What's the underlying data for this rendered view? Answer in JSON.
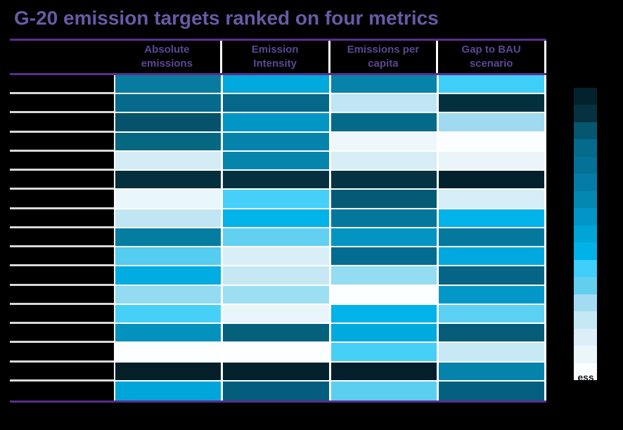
{
  "title": "G-20 emission targets ranked on four metrics",
  "colors": {
    "background": "#000000",
    "title_text": "#695aa6",
    "header_text": "#5b4794",
    "rule_purple": "#5b2d90",
    "label_row_separator": "#d9d9d9",
    "cell_gap": "#ffffff"
  },
  "legend": {
    "bottom_text_fragment": "ess"
  },
  "chart_data": {
    "type": "heatmap",
    "title": "G-20 emission targets ranked on four metrics",
    "columns": [
      "Absolute emissions",
      "Emission Intensity",
      "Emissions per capita",
      "Gap to BAU scenario"
    ],
    "row_count": 17,
    "row_labels_visible": false,
    "legend_position": "right-vertical",
    "legend_colors": [
      "#03222e",
      "#053140",
      "#05566f",
      "#056a8b",
      "#047197",
      "#047ca3",
      "#0487b0",
      "#0295c5",
      "#00a4d7",
      "#00b2e8",
      "#3fcdf9",
      "#62cfee",
      "#a3dcf2",
      "#c5e8f5",
      "#dceff8",
      "#ebf6fb",
      "#fbfeff"
    ],
    "cell_colors": [
      [
        "#087c9f",
        "#00a9dc",
        "#0583a8",
        "#3fcef8"
      ],
      [
        "#056a8c",
        "#05678a",
        "#bfe6f2",
        "#04303d"
      ],
      [
        "#05536b",
        "#0396c4",
        "#046a8a",
        "#a0daf0"
      ],
      [
        "#056880",
        "#0583ab",
        "#eef7fb",
        "#fbfeff"
      ],
      [
        "#d4ecf6",
        "#0584ac",
        "#d8eef7",
        "#eaf5fa"
      ],
      [
        "#042f3d",
        "#04303f",
        "#053343",
        "#03212c"
      ],
      [
        "#e9f6fb",
        "#46d0f9",
        "#055b76",
        "#d4edf7"
      ],
      [
        "#c0e6f3",
        "#00b3e8",
        "#04789c",
        "#00b3e9"
      ],
      [
        "#047da1",
        "#62d1f1",
        "#0295c3",
        "#04789d"
      ],
      [
        "#54cdf0",
        "#d9eff8",
        "#046c90",
        "#00a8e0"
      ],
      [
        "#00ace2",
        "#c6e8f4",
        "#93dcf2",
        "#056586"
      ],
      [
        "#92dbf1",
        "#9cdff3",
        "#fcffff",
        "#0397c8"
      ],
      [
        "#46d0f8",
        "#e8f5fa",
        "#00b3e9",
        "#5bd0f2"
      ],
      [
        "#0392be",
        "#05607c",
        "#00a9de",
        "#055c76"
      ],
      [
        "#fbffff",
        "#fcffff",
        "#46d0f8",
        "#c6e9f5"
      ],
      [
        "#051f29",
        "#03222d",
        "#041f2b",
        "#0583aa"
      ],
      [
        "#00a5da",
        "#045d7c",
        "#5bcfef",
        "#04607e"
      ]
    ]
  }
}
